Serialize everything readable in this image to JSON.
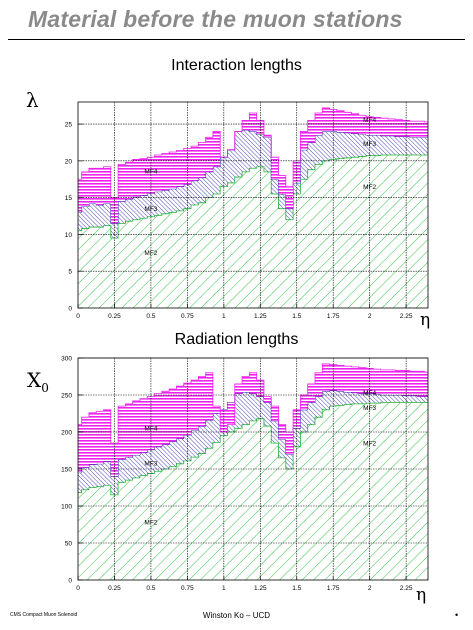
{
  "page": {
    "title": "Material before the muon stations",
    "footer_left": "CMS Compact Muon Solenoid",
    "footer_center": "Winston Ko – UCD",
    "footer_right": "•"
  },
  "colors": {
    "MF2": "#22bb33",
    "MF3": "#1a1aa8",
    "MF4": "#ee22ee"
  },
  "chart_data": [
    {
      "type": "area",
      "title": "Interaction lengths",
      "ylabel": "λ",
      "xlabel": "η",
      "xlim": [
        0,
        2.4
      ],
      "ylim": [
        0,
        28
      ],
      "xticks": [
        0,
        0.25,
        0.5,
        0.75,
        1,
        1.25,
        1.5,
        1.75,
        2,
        2.25
      ],
      "xtick_labels": [
        "0",
        "0.25",
        "0.5",
        "0.75",
        "1",
        "1.25",
        "1.5",
        "1.75",
        "2",
        "2.25"
      ],
      "yticks": [
        0,
        5,
        10,
        15,
        20,
        25
      ],
      "ytick_labels": [
        "0",
        "5",
        "10",
        "15",
        "20",
        "25"
      ],
      "grid": true,
      "x": [
        0,
        0.05,
        0.1,
        0.15,
        0.2,
        0.25,
        0.3,
        0.35,
        0.4,
        0.45,
        0.5,
        0.55,
        0.6,
        0.65,
        0.7,
        0.75,
        0.8,
        0.85,
        0.9,
        0.95,
        1.0,
        1.05,
        1.1,
        1.15,
        1.2,
        1.25,
        1.3,
        1.35,
        1.4,
        1.45,
        1.5,
        1.55,
        1.6,
        1.65,
        1.7,
        1.75,
        1.8,
        1.85,
        1.9,
        1.95,
        2.0,
        2.05,
        2.1,
        2.15,
        2.2,
        2.25,
        2.3,
        2.35,
        2.4
      ],
      "series": [
        {
          "name": "MF2",
          "values": [
            10.5,
            10.8,
            11.0,
            11.0,
            11.2,
            9.5,
            11.5,
            11.8,
            12.0,
            12.2,
            12.4,
            12.6,
            12.8,
            13.0,
            13.2,
            13.5,
            14.0,
            14.3,
            15.0,
            15.5,
            16.5,
            17.0,
            17.8,
            18.5,
            19.0,
            19.2,
            18.5,
            15.5,
            13.5,
            12.0,
            15.5,
            17.5,
            18.8,
            19.5,
            20.0,
            20.2,
            20.3,
            20.4,
            20.5,
            20.6,
            20.7,
            20.7,
            20.8,
            20.8,
            20.8,
            20.8,
            20.8,
            20.8,
            20.8
          ]
        },
        {
          "name": "MF3",
          "values": [
            13.0,
            13.8,
            14.2,
            14.0,
            14.2,
            11.5,
            14.5,
            14.8,
            15.1,
            15.3,
            15.6,
            15.8,
            16.0,
            16.2,
            16.5,
            16.8,
            17.3,
            17.7,
            18.5,
            19.2,
            20.5,
            21.5,
            24.0,
            24.2,
            24.0,
            23.6,
            23.2,
            17.5,
            15.5,
            13.5,
            17.0,
            21.5,
            22.5,
            23.5,
            24.0,
            24.0,
            23.9,
            23.8,
            23.7,
            23.6,
            23.5,
            23.5,
            23.4,
            23.4,
            23.3,
            23.3,
            23.2,
            23.2,
            23.2
          ]
        },
        {
          "name": "MF4",
          "values": [
            17.5,
            18.5,
            19.0,
            19.0,
            19.2,
            15.0,
            19.5,
            19.8,
            20.2,
            20.3,
            20.5,
            20.8,
            21.0,
            21.2,
            21.4,
            21.7,
            22.0,
            22.5,
            23.2,
            24.0,
            20.5,
            21.5,
            24.0,
            25.5,
            26.5,
            25.5,
            23.5,
            20.5,
            18.0,
            16.5,
            20.0,
            24.0,
            25.5,
            26.5,
            27.2,
            27.0,
            26.8,
            26.6,
            26.4,
            26.2,
            26.0,
            25.9,
            25.8,
            25.7,
            25.6,
            25.5,
            25.4,
            25.4,
            25.3
          ]
        }
      ],
      "region_labels": [
        {
          "text": "MF4",
          "x": 0.5,
          "y": 18.3
        },
        {
          "text": "MF3",
          "x": 0.5,
          "y": 13.2
        },
        {
          "text": "MF2",
          "x": 0.5,
          "y": 7.2
        },
        {
          "text": "MF4",
          "x": 2.0,
          "y": 25.3
        },
        {
          "text": "MF3",
          "x": 2.0,
          "y": 22.0
        },
        {
          "text": "MF2",
          "x": 2.0,
          "y": 16.2
        }
      ]
    },
    {
      "type": "area",
      "title": "Radiation lengths",
      "ylabel": "X",
      "ylabel_sub": "0",
      "xlabel": "η",
      "xlim": [
        0,
        2.4
      ],
      "ylim": [
        0,
        300
      ],
      "xticks": [
        0,
        0.25,
        0.5,
        0.75,
        1,
        1.25,
        1.5,
        1.75,
        2,
        2.25
      ],
      "xtick_labels": [
        "0",
        "0.25",
        "0.5",
        "0.75",
        "1",
        "1.25",
        "1.5",
        "1.75",
        "2",
        "2.25"
      ],
      "yticks": [
        0,
        50,
        100,
        150,
        200,
        250,
        300
      ],
      "ytick_labels": [
        "0",
        "50",
        "100",
        "150",
        "200",
        "250",
        "300"
      ],
      "grid": true,
      "x": [
        0,
        0.05,
        0.1,
        0.15,
        0.2,
        0.25,
        0.3,
        0.35,
        0.4,
        0.45,
        0.5,
        0.55,
        0.6,
        0.65,
        0.7,
        0.75,
        0.8,
        0.85,
        0.9,
        0.95,
        1.0,
        1.05,
        1.1,
        1.15,
        1.2,
        1.25,
        1.3,
        1.35,
        1.4,
        1.45,
        1.5,
        1.55,
        1.6,
        1.65,
        1.7,
        1.75,
        1.8,
        1.85,
        1.9,
        1.95,
        2.0,
        2.05,
        2.1,
        2.15,
        2.2,
        2.25,
        2.3,
        2.35,
        2.4
      ],
      "series": [
        {
          "name": "MF2",
          "values": [
            118,
            122,
            125,
            126,
            128,
            115,
            132,
            135,
            138,
            141,
            144,
            147,
            150,
            153,
            157,
            161,
            166,
            171,
            178,
            186,
            195,
            200,
            205,
            210,
            215,
            218,
            208,
            185,
            165,
            150,
            180,
            200,
            210,
            220,
            230,
            235,
            236,
            237,
            238,
            238,
            239,
            239,
            240,
            240,
            240,
            240,
            240,
            240,
            240
          ]
        },
        {
          "name": "MF3",
          "values": [
            145,
            152,
            156,
            157,
            160,
            140,
            163,
            166,
            169,
            172,
            176,
            180,
            183,
            187,
            191,
            196,
            202,
            208,
            216,
            225,
            230,
            240,
            252,
            254,
            252,
            248,
            240,
            215,
            190,
            170,
            205,
            230,
            240,
            248,
            255,
            256,
            255,
            254,
            253,
            252,
            252,
            251,
            250,
            250,
            250,
            249,
            249,
            248,
            248
          ]
        },
        {
          "name": "MF4",
          "values": [
            210,
            220,
            226,
            228,
            230,
            185,
            235,
            238,
            242,
            245,
            248,
            252,
            255,
            258,
            262,
            266,
            270,
            275,
            280,
            235,
            200,
            210,
            265,
            275,
            280,
            270,
            248,
            235,
            210,
            200,
            230,
            250,
            265,
            280,
            292,
            291,
            290,
            289,
            288,
            287,
            286,
            285,
            284,
            284,
            283,
            283,
            282,
            282,
            281
          ]
        }
      ],
      "region_labels": [
        {
          "text": "MF4",
          "x": 0.5,
          "y": 202
        },
        {
          "text": "MF3",
          "x": 0.5,
          "y": 155
        },
        {
          "text": "MF2",
          "x": 0.5,
          "y": 75
        },
        {
          "text": "MF4",
          "x": 2.0,
          "y": 250
        },
        {
          "text": "MF3",
          "x": 2.0,
          "y": 230
        },
        {
          "text": "MF2",
          "x": 2.0,
          "y": 182
        }
      ]
    }
  ]
}
